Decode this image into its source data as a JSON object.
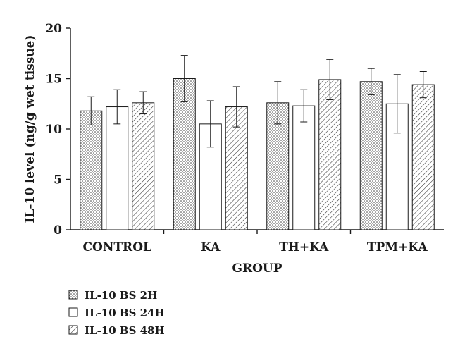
{
  "chart_data": {
    "type": "bar",
    "title": "",
    "xlabel": "GROUP",
    "ylabel": "IL-10 level (ng/g wet tissue)",
    "ylim": [
      0,
      20
    ],
    "yticks": [
      "0",
      "5",
      "10",
      "15",
      "20"
    ],
    "grid": false,
    "legend_position": "bottom-left",
    "categories": [
      "CONTROL",
      "KA",
      "TH+KA",
      "TPM+KA"
    ],
    "series": [
      {
        "name": "IL-10 BS 2H",
        "pattern": "dots",
        "values": [
          11.8,
          15.0,
          12.6,
          14.7
        ],
        "errors": [
          1.4,
          2.3,
          2.1,
          1.3
        ]
      },
      {
        "name": "IL-10 BS 24H",
        "pattern": "none",
        "values": [
          12.2,
          10.5,
          12.3,
          12.5
        ],
        "errors": [
          1.7,
          2.3,
          1.6,
          2.9
        ]
      },
      {
        "name": "IL-10 BS 48H",
        "pattern": "hatch",
        "values": [
          12.6,
          12.2,
          14.9,
          14.4
        ],
        "errors": [
          1.1,
          2.0,
          2.0,
          1.3
        ]
      }
    ],
    "colors": {
      "axis": "#1a1a1a",
      "bar_fill": "#ffffff",
      "pattern_ink": "#333333"
    }
  }
}
